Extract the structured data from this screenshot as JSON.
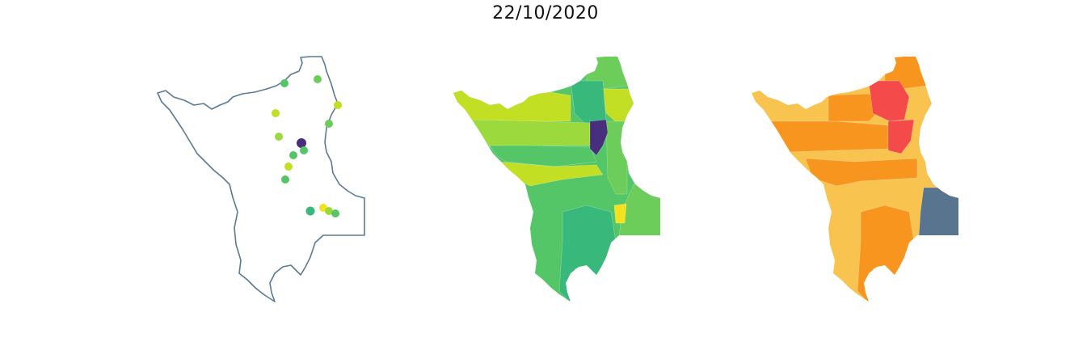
{
  "title": "22/10/2020",
  "colors": {
    "outline": "#5a7a94",
    "viridis_dark": "#472f7d",
    "viridis_teal": "#39b87b",
    "viridis_green": "#55c667",
    "viridis_lightgreen": "#6ccd5a",
    "viridis_lime": "#9bd93c",
    "viridis_yellowgreen": "#c2df23",
    "viridis_yellow": "#f5e21e",
    "risk_light": "#f8c44f",
    "risk_orange": "#f7951f",
    "risk_red": "#f44a4a",
    "risk_slate": "#58748f"
  },
  "panels": [
    {
      "name": "station-points-map",
      "points": [
        {
          "color": "viridis_green"
        },
        {
          "color": "viridis_lightgreen"
        },
        {
          "color": "viridis_yellowgreen"
        },
        {
          "color": "viridis_yellowgreen"
        },
        {
          "color": "viridis_lightgreen"
        },
        {
          "color": "viridis_lime"
        },
        {
          "color": "viridis_dark"
        },
        {
          "color": "viridis_green"
        },
        {
          "color": "viridis_green"
        },
        {
          "color": "viridis_yellowgreen"
        },
        {
          "color": "viridis_green"
        },
        {
          "color": "viridis_teal"
        },
        {
          "color": "viridis_yellow"
        },
        {
          "color": "viridis_lime"
        },
        {
          "color": "viridis_green"
        }
      ]
    },
    {
      "name": "continuous-basin-map"
    },
    {
      "name": "risk-category-basin-map"
    }
  ]
}
